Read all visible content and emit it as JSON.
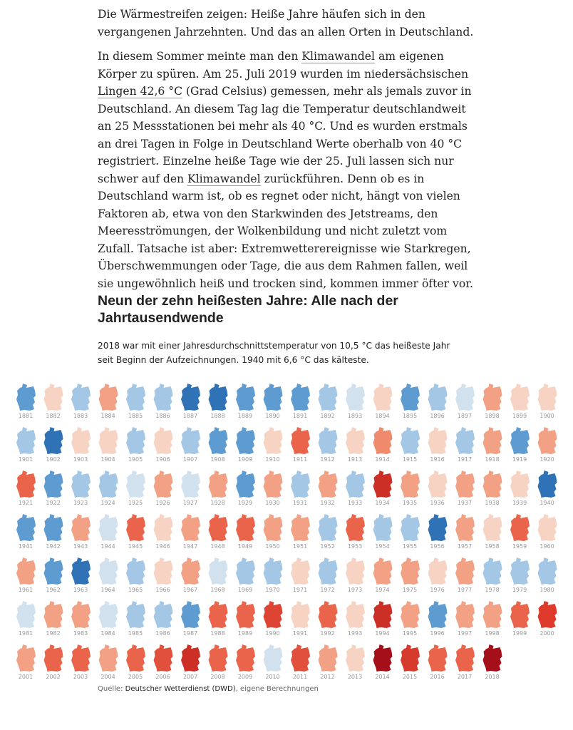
{
  "article": {
    "paragraphs": [
      [
        "Die Wärmestreifen zeigen: Heiße Jahre häufen sich in den vergangenen Jahrzehnten. Und das an allen Orten in Deutschland."
      ],
      [
        "In diesem Sommer meinte man den ",
        {
          "link": "Klimawandel"
        },
        " am eigenen Körper zu spüren. Am 25. Juli 2019 wurden im niedersächsischen ",
        {
          "link": "Lingen 42,6 °C"
        },
        " (Grad Celsius) gemessen, mehr als jemals zuvor in Deutschland. An diesem Tag lag die Temperatur deutschlandweit an 25 Messstationen bei mehr als 40 °C. Und es wurden erstmals an drei Tagen in Folge in Deutschland Werte oberhalb von 40 °C registriert. Einzelne heiße Tage wie der 25. Juli lassen sich nur schwer auf den ",
        {
          "link": "Klimawandel"
        },
        " zurückführen. Denn ob es in Deutschland warm ist, ob es regnet oder nicht, hängt von vielen Faktoren ab, etwa von den Starkwinden des Jetstreams, den Meeresströmungen, der Wolkenbildung und nicht zuletzt vom Zufall. Tatsache ist aber: Extremwetterereignisse wie Starkregen, Überschwemmungen oder Tage, die aus dem Rahmen fallen, weil sie ungewöhnlich heiß und trocken sind, kommen immer öfter vor."
      ]
    ]
  },
  "graphic": {
    "title": "Neun der zehn heißesten Jahre: Alle nach der Jahrtausendwende",
    "subtitle": "2018 war mit einer Jahresdurchschnittstemperatur von 10,5 °C das heißeste Jahr seit Beginn der Aufzeichnungen. 1940 mit 6,6 °C das kälteste.",
    "maps": [
      [
        "1881",
        "#5d9bd1"
      ],
      [
        "1882",
        "#f7d3c4"
      ],
      [
        "1883",
        "#a3c7e4"
      ],
      [
        "1884",
        "#f2a185"
      ],
      [
        "1885",
        "#a3c7e4"
      ],
      [
        "1886",
        "#a3c7e4"
      ],
      [
        "1887",
        "#2f72b5"
      ],
      [
        "1888",
        "#2f72b5"
      ],
      [
        "1889",
        "#5d9bd1"
      ],
      [
        "1890",
        "#5d9bd1"
      ],
      [
        "1891",
        "#5d9bd1"
      ],
      [
        "1892",
        "#a3c7e4"
      ],
      [
        "1893",
        "#d2e1ee"
      ],
      [
        "1894",
        "#f7d3c4"
      ],
      [
        "1895",
        "#5d9bd1"
      ],
      [
        "1896",
        "#a3c7e4"
      ],
      [
        "1897",
        "#d2e1ee"
      ],
      [
        "1898",
        "#f2a185"
      ],
      [
        "1899",
        "#f7d3c4"
      ],
      [
        "1900",
        "#f7d3c4"
      ],
      [
        "1901",
        "#a3c7e4"
      ],
      [
        "1902",
        "#2f72b5"
      ],
      [
        "1903",
        "#f7d3c4"
      ],
      [
        "1904",
        "#f7d3c4"
      ],
      [
        "1905",
        "#a3c7e4"
      ],
      [
        "1906",
        "#f7d3c4"
      ],
      [
        "1907",
        "#a3c7e4"
      ],
      [
        "1908",
        "#5d9bd1"
      ],
      [
        "1909",
        "#5d9bd1"
      ],
      [
        "1910",
        "#f7d3c4"
      ],
      [
        "1911",
        "#e9644a"
      ],
      [
        "1912",
        "#a3c7e4"
      ],
      [
        "1913",
        "#f7d3c4"
      ],
      [
        "1914",
        "#f08a6c"
      ],
      [
        "1915",
        "#a3c7e4"
      ],
      [
        "1916",
        "#f7d3c4"
      ],
      [
        "1917",
        "#a3c7e4"
      ],
      [
        "1918",
        "#f2a185"
      ],
      [
        "1919",
        "#5d9bd1"
      ],
      [
        "1920",
        "#f2a185"
      ],
      [
        "1921",
        "#e9644a"
      ],
      [
        "1922",
        "#5d9bd1"
      ],
      [
        "1923",
        "#a3c7e4"
      ],
      [
        "1924",
        "#a3c7e4"
      ],
      [
        "1925",
        "#d2e1ee"
      ],
      [
        "1926",
        "#f2a185"
      ],
      [
        "1927",
        "#d2e1ee"
      ],
      [
        "1928",
        "#f2a185"
      ],
      [
        "1929",
        "#5d9bd1"
      ],
      [
        "1930",
        "#f2a185"
      ],
      [
        "1931",
        "#a3c7e4"
      ],
      [
        "1932",
        "#f2a185"
      ],
      [
        "1933",
        "#a3c7e4"
      ],
      [
        "1934",
        "#cc2f25"
      ],
      [
        "1935",
        "#f2a185"
      ],
      [
        "1936",
        "#f7d3c4"
      ],
      [
        "1937",
        "#f2a185"
      ],
      [
        "1938",
        "#f2a185"
      ],
      [
        "1939",
        "#f7d3c4"
      ],
      [
        "1940",
        "#2f72b5"
      ],
      [
        "1941",
        "#5d9bd1"
      ],
      [
        "1942",
        "#5d9bd1"
      ],
      [
        "1943",
        "#f2a185"
      ],
      [
        "1944",
        "#d2e1ee"
      ],
      [
        "1945",
        "#e9644a"
      ],
      [
        "1946",
        "#f7d3c4"
      ],
      [
        "1947",
        "#f2a185"
      ],
      [
        "1948",
        "#e9644a"
      ],
      [
        "1949",
        "#e9644a"
      ],
      [
        "1950",
        "#f2a185"
      ],
      [
        "1951",
        "#f2a185"
      ],
      [
        "1952",
        "#a3c7e4"
      ],
      [
        "1953",
        "#e9644a"
      ],
      [
        "1954",
        "#a3c7e4"
      ],
      [
        "1955",
        "#a3c7e4"
      ],
      [
        "1956",
        "#2f72b5"
      ],
      [
        "1957",
        "#f2a185"
      ],
      [
        "1958",
        "#f7d3c4"
      ],
      [
        "1959",
        "#e9644a"
      ],
      [
        "1960",
        "#f7d3c4"
      ],
      [
        "1961",
        "#f2a185"
      ],
      [
        "1962",
        "#5d9bd1"
      ],
      [
        "1963",
        "#2f72b5"
      ],
      [
        "1964",
        "#d2e1ee"
      ],
      [
        "1965",
        "#a3c7e4"
      ],
      [
        "1966",
        "#f7d3c4"
      ],
      [
        "1967",
        "#f2a185"
      ],
      [
        "1968",
        "#d2e1ee"
      ],
      [
        "1969",
        "#a3c7e4"
      ],
      [
        "1970",
        "#a3c7e4"
      ],
      [
        "1971",
        "#f7d3c4"
      ],
      [
        "1972",
        "#a3c7e4"
      ],
      [
        "1973",
        "#f7d3c4"
      ],
      [
        "1974",
        "#f2a185"
      ],
      [
        "1975",
        "#f2a185"
      ],
      [
        "1976",
        "#f7d3c4"
      ],
      [
        "1977",
        "#f2a185"
      ],
      [
        "1978",
        "#a3c7e4"
      ],
      [
        "1979",
        "#a3c7e4"
      ],
      [
        "1980",
        "#a3c7e4"
      ],
      [
        "1981",
        "#d2e1ee"
      ],
      [
        "1982",
        "#f2a185"
      ],
      [
        "1983",
        "#f2a185"
      ],
      [
        "1984",
        "#d2e1ee"
      ],
      [
        "1985",
        "#a3c7e4"
      ],
      [
        "1986",
        "#a3c7e4"
      ],
      [
        "1987",
        "#5d9bd1"
      ],
      [
        "1988",
        "#e9644a"
      ],
      [
        "1989",
        "#e9644a"
      ],
      [
        "1990",
        "#dd4433"
      ],
      [
        "1991",
        "#f7d3c4"
      ],
      [
        "1992",
        "#e9644a"
      ],
      [
        "1993",
        "#f7d3c4"
      ],
      [
        "1994",
        "#cc2f25"
      ],
      [
        "1995",
        "#f2a185"
      ],
      [
        "1996",
        "#5d9bd1"
      ],
      [
        "1997",
        "#f2a185"
      ],
      [
        "1998",
        "#f2a185"
      ],
      [
        "1999",
        "#e9644a"
      ],
      [
        "2000",
        "#dd3a2c"
      ],
      [
        "2001",
        "#f2a185"
      ],
      [
        "2002",
        "#e9644a"
      ],
      [
        "2003",
        "#e9644a"
      ],
      [
        "2004",
        "#f2a185"
      ],
      [
        "2005",
        "#e9644a"
      ],
      [
        "2006",
        "#e0503d"
      ],
      [
        "2007",
        "#cc2f25"
      ],
      [
        "2008",
        "#e9644a"
      ],
      [
        "2009",
        "#e9644a"
      ],
      [
        "2010",
        "#d2e1ee"
      ],
      [
        "2011",
        "#e0503d"
      ],
      [
        "2012",
        "#f2a185"
      ],
      [
        "2013",
        "#f7d3c4"
      ],
      [
        "2014",
        "#a50f1a"
      ],
      [
        "2015",
        "#d63a2c"
      ],
      [
        "2016",
        "#e9644a"
      ],
      [
        "2017",
        "#e9644a"
      ],
      [
        "2018",
        "#a50f1a"
      ]
    ],
    "source": {
      "prefix": "Quelle: ",
      "name": "Deutscher Wetterdienst (DWD)",
      "suffix": ", eigene Berechnungen"
    }
  }
}
